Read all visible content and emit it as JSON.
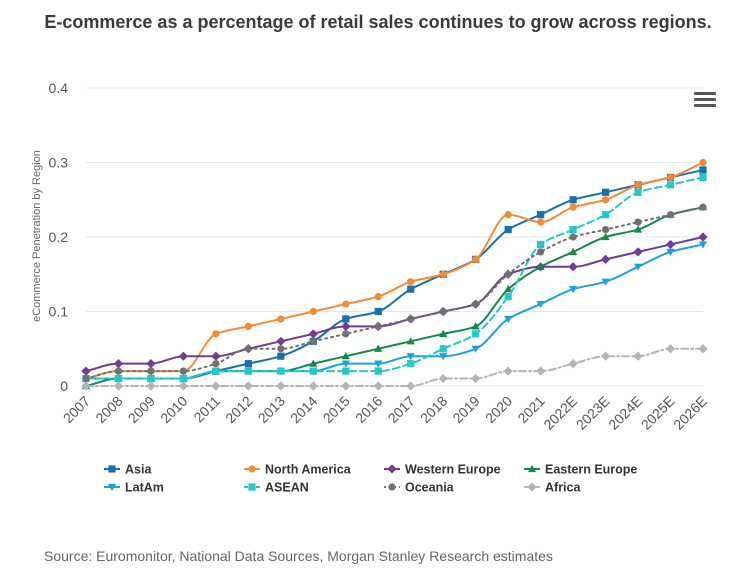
{
  "title": "E-commerce as a percentage of retail sales continues to grow across regions.",
  "source": "Source: Euromonitor, National Data Sources, Morgan Stanley Research estimates",
  "menu_icon": "hamburger-menu-icon",
  "chart_data": {
    "type": "line",
    "title": "E-commerce as a percentage of retail sales continues to grow across regions.",
    "xlabel": "",
    "ylabel": "eCommerce Penetration by Region",
    "ylim": [
      0,
      0.4
    ],
    "yticks": [
      0,
      0.1,
      0.2,
      0.3,
      0.4
    ],
    "ytick_labels": [
      "0",
      "0.1",
      "0.2",
      "0.3",
      "0.4"
    ],
    "categories": [
      "2007",
      "2008",
      "2009",
      "2010",
      "2011",
      "2012",
      "2013",
      "2014",
      "2015",
      "2016",
      "2017",
      "2018",
      "2019",
      "2020",
      "2021",
      "2022E",
      "2023E",
      "2024E",
      "2025E",
      "2026E"
    ],
    "legend_position": "bottom",
    "series": [
      {
        "name": "Asia",
        "color": "#1a6fb0",
        "marker": "square",
        "dash": "solid",
        "values": [
          0.01,
          0.01,
          0.01,
          0.01,
          0.02,
          0.03,
          0.04,
          0.06,
          0.09,
          0.1,
          0.13,
          0.15,
          0.17,
          0.21,
          0.23,
          0.25,
          0.26,
          0.27,
          0.28,
          0.29
        ]
      },
      {
        "name": "North America",
        "color": "#f28a36",
        "marker": "circle",
        "dash": "solid",
        "values": [
          0.01,
          0.02,
          0.02,
          0.02,
          0.07,
          0.08,
          0.09,
          0.1,
          0.11,
          0.12,
          0.14,
          0.15,
          0.17,
          0.23,
          0.22,
          0.24,
          0.25,
          0.27,
          0.28,
          0.3
        ]
      },
      {
        "name": "Western Europe",
        "color": "#6f3c97",
        "marker": "diamond",
        "dash": "solid",
        "values": [
          0.02,
          0.03,
          0.03,
          0.04,
          0.04,
          0.05,
          0.06,
          0.07,
          0.08,
          0.08,
          0.09,
          0.1,
          0.11,
          0.15,
          0.16,
          0.16,
          0.17,
          0.18,
          0.19,
          0.2
        ]
      },
      {
        "name": "Eastern Europe",
        "color": "#16884a",
        "marker": "triangle",
        "dash": "solid",
        "values": [
          0.0,
          0.01,
          0.01,
          0.01,
          0.02,
          0.02,
          0.02,
          0.03,
          0.04,
          0.05,
          0.06,
          0.07,
          0.08,
          0.13,
          0.16,
          0.18,
          0.2,
          0.21,
          0.23,
          0.24
        ]
      },
      {
        "name": "LatAm",
        "color": "#1ea0e0",
        "marker": "triangle-down",
        "dash": "solid",
        "values": [
          0.01,
          0.01,
          0.01,
          0.01,
          0.02,
          0.02,
          0.02,
          0.02,
          0.03,
          0.03,
          0.04,
          0.04,
          0.05,
          0.09,
          0.11,
          0.13,
          0.14,
          0.16,
          0.18,
          0.19
        ]
      },
      {
        "name": "ASEAN",
        "color": "#25c8c8",
        "marker": "square",
        "dash": "dashed",
        "values": [
          0.01,
          0.01,
          0.01,
          0.01,
          0.02,
          0.02,
          0.02,
          0.02,
          0.02,
          0.02,
          0.03,
          0.05,
          0.07,
          0.12,
          0.19,
          0.21,
          0.23,
          0.26,
          0.27,
          0.28
        ]
      },
      {
        "name": "Oceania",
        "color": "#707070",
        "marker": "circle",
        "dash": "dotted",
        "values": [
          0.01,
          0.02,
          0.02,
          0.02,
          0.03,
          0.05,
          0.05,
          0.06,
          0.07,
          0.08,
          0.09,
          0.1,
          0.11,
          0.15,
          0.18,
          0.2,
          0.21,
          0.22,
          0.23,
          0.24
        ]
      },
      {
        "name": "Africa",
        "color": "#b4b4b4",
        "marker": "diamond",
        "dash": "dashdot",
        "values": [
          0.0,
          0.0,
          0.0,
          0.0,
          0.0,
          0.0,
          0.0,
          0.0,
          0.0,
          0.0,
          0.0,
          0.01,
          0.01,
          0.02,
          0.02,
          0.03,
          0.04,
          0.04,
          0.05,
          0.05
        ]
      }
    ]
  }
}
